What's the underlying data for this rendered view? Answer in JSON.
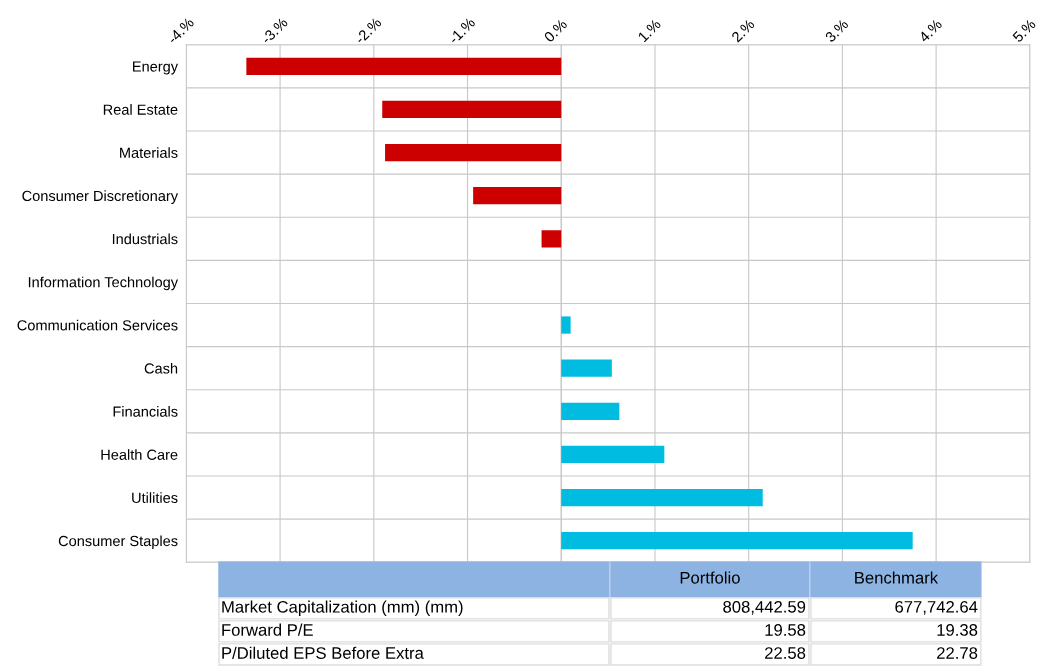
{
  "chart_data": [
    {
      "type": "bar",
      "orientation": "horizontal",
      "categories": [
        "Energy",
        "Real Estate",
        "Materials",
        "Consumer Discretionary",
        "Industrials",
        "Information Technology",
        "Communication Services",
        "Cash",
        "Financials",
        "Health Care",
        "Utilities",
        "Consumer Staples"
      ],
      "values": [
        -3.36,
        -1.91,
        -1.88,
        -0.94,
        -0.21,
        0,
        0.1,
        0.54,
        0.62,
        1.1,
        2.15,
        3.75
      ],
      "colors": [
        "#cc0000",
        "#cc0000",
        "#cc0000",
        "#cc0000",
        "#cc0000",
        "#cc0000",
        "#00bce0",
        "#00bce0",
        "#00bce0",
        "#00bce0",
        "#00bce0",
        "#00bce0"
      ],
      "xlim": [
        -4,
        5
      ],
      "xticks": [
        {
          "value": -4,
          "label": "-4.%"
        },
        {
          "value": -3,
          "label": "-3.%"
        },
        {
          "value": -2,
          "label": "-2.%"
        },
        {
          "value": -1,
          "label": "-1.%"
        },
        {
          "value": 0,
          "label": "0.%"
        },
        {
          "value": 1,
          "label": "1.%"
        },
        {
          "value": 2,
          "label": "2.%"
        },
        {
          "value": 3,
          "label": "3.%"
        },
        {
          "value": 4,
          "label": "4.%"
        },
        {
          "value": 5,
          "label": "5.%"
        }
      ],
      "grid": true,
      "legend": false
    },
    {
      "type": "other",
      "categories": [
        null,
        "Portfolio",
        "Benchmark"
      ],
      "y_categories": [
        "Market Capitalization (mm) (mm)",
        "Forward P/E",
        "P/Diluted EPS Before Extra"
      ],
      "cell_labels": [
        [
          "808,442.59",
          "677,742.64"
        ],
        [
          "19.58",
          "19.38"
        ],
        [
          "22.58",
          "22.78"
        ]
      ]
    }
  ]
}
